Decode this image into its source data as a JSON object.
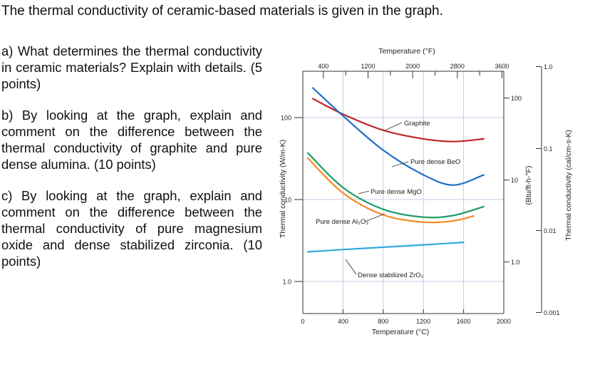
{
  "question": {
    "title": "The thermal conductivity of ceramic-based materials is given in the graph.",
    "part_a": "a) What determines the thermal conductivity in ceramic materials? Explain with details. (5 points)",
    "part_b": "b) By looking at the graph, explain and comment on the difference between the thermal conductivity of graphite and pure dense alumina. (10 points)",
    "part_c": "c) By looking at the graph, explain and comment on the difference between the thermal conductivity of pure magnesium oxide and dense stabilized zirconia. (10 points)"
  },
  "chart_data": {
    "type": "line",
    "title": "",
    "xlabel": "Temperature (°C)",
    "xlabel_top": "Temperature (°F)",
    "ylabel": "Thermal conductivity (W/m-K)",
    "ylabel_right_inner": "(Btu/ft-h-°F)",
    "ylabel_right_outer": "Thermal conductivity (cal/cm-s-K)",
    "xlim": [
      0,
      2000
    ],
    "ylim": [
      0.6,
      300
    ],
    "y_scale": "log",
    "grid": true,
    "x_ticks": [
      "0",
      "400",
      "800",
      "1200",
      "1600",
      "2000"
    ],
    "top_ticks": [
      "400",
      "1200",
      "2000",
      "2800",
      "3600"
    ],
    "y_ticks": [
      "1.0",
      "10",
      "100"
    ],
    "right_inner_ticks": [
      "1.0",
      "10",
      "100"
    ],
    "right_outer_ticks": [
      "0.001",
      "0.01",
      "0.1",
      "1.0"
    ],
    "series": [
      {
        "name": "Graphite",
        "label": "Graphite",
        "color": "#c0262d",
        "x": [
          100,
          400,
          800,
          1200,
          1500,
          1800
        ],
        "y": [
          170,
          110,
          70,
          55,
          51,
          55
        ]
      },
      {
        "name": "Pure dense BeO",
        "label": "Pure dense BeO",
        "color": "#1f6fc5",
        "x": [
          100,
          400,
          800,
          1200,
          1500,
          1800
        ],
        "y": [
          230,
          105,
          40,
          20,
          15,
          20
        ]
      },
      {
        "name": "Pure dense MgO",
        "label": "Pure dense MgO",
        "color": "#1a9c68",
        "x": [
          50,
          400,
          800,
          1200,
          1500,
          1800
        ],
        "y": [
          37,
          14,
          7.6,
          6.1,
          6.4,
          8.2
        ]
      },
      {
        "name": "Pure dense Al2O3",
        "label": "Pure dense Al₂O₃",
        "color": "#f58a22",
        "x": [
          50,
          400,
          800,
          1200,
          1500,
          1700
        ],
        "y": [
          32,
          12,
          6.5,
          5.3,
          5.5,
          6.3
        ]
      },
      {
        "name": "Dense stabilized ZrO2",
        "label": "Dense stabilized ZrO₂",
        "color": "#35a9dd",
        "x": [
          50,
          400,
          800,
          1200,
          1600
        ],
        "y": [
          2.3,
          2.45,
          2.62,
          2.8,
          3.0
        ]
      }
    ]
  }
}
